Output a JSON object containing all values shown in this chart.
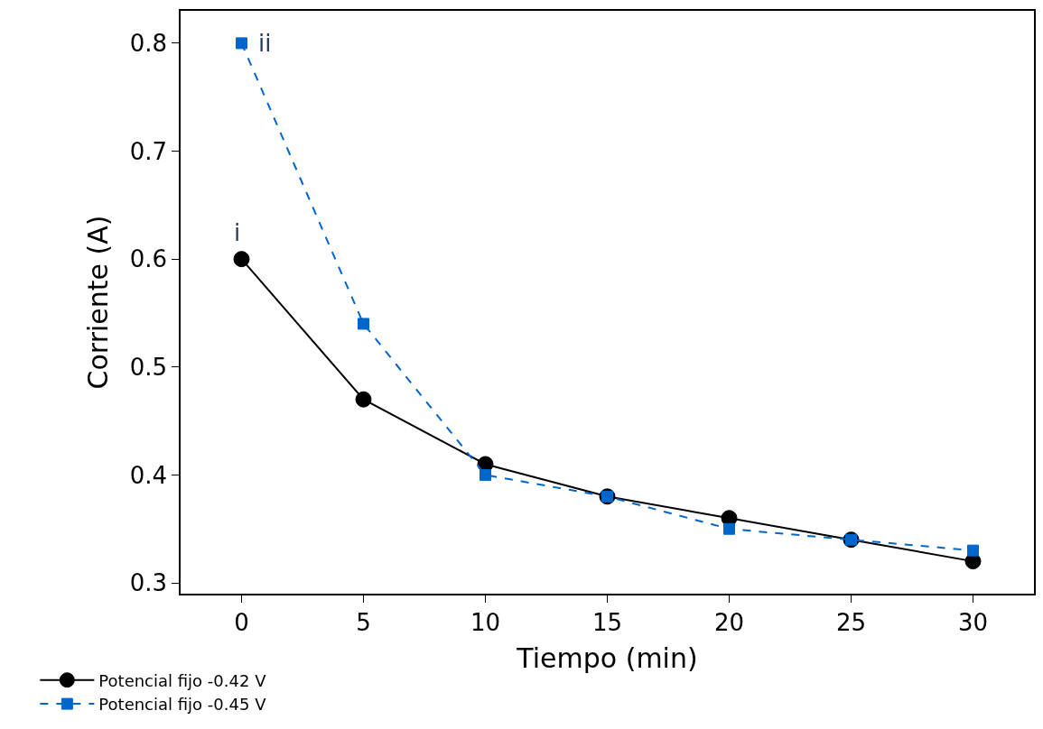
{
  "chart_data": {
    "type": "line",
    "xlabel": "Tiempo (min)",
    "ylabel": "Corriente (A)",
    "x": [
      0,
      5,
      10,
      15,
      20,
      25,
      30
    ],
    "series": [
      {
        "name": "Potencial fijo -0.42 V",
        "color": "#000000",
        "marker": "circle",
        "line_style": "solid",
        "values": [
          0.6,
          0.47,
          0.41,
          0.38,
          0.36,
          0.34,
          0.32
        ]
      },
      {
        "name": "Potencial fijo -0.45 V",
        "color": "#0066cc",
        "marker": "square",
        "line_style": "dashed",
        "values": [
          0.8,
          0.54,
          0.4,
          0.38,
          0.35,
          0.34,
          0.33
        ]
      }
    ],
    "xlim": [
      -2.5,
      32.5
    ],
    "xticks": [
      0,
      5,
      10,
      15,
      20,
      25,
      30
    ],
    "ylim": [
      0.29,
      0.83
    ],
    "yticks": [
      0.3,
      0.4,
      0.5,
      0.6,
      0.7,
      0.8
    ],
    "annotations": [
      {
        "text": "i",
        "x": 0,
        "y": 0.6
      },
      {
        "text": "ii",
        "x": 0,
        "y": 0.8
      }
    ],
    "legend": "bottom left"
  }
}
